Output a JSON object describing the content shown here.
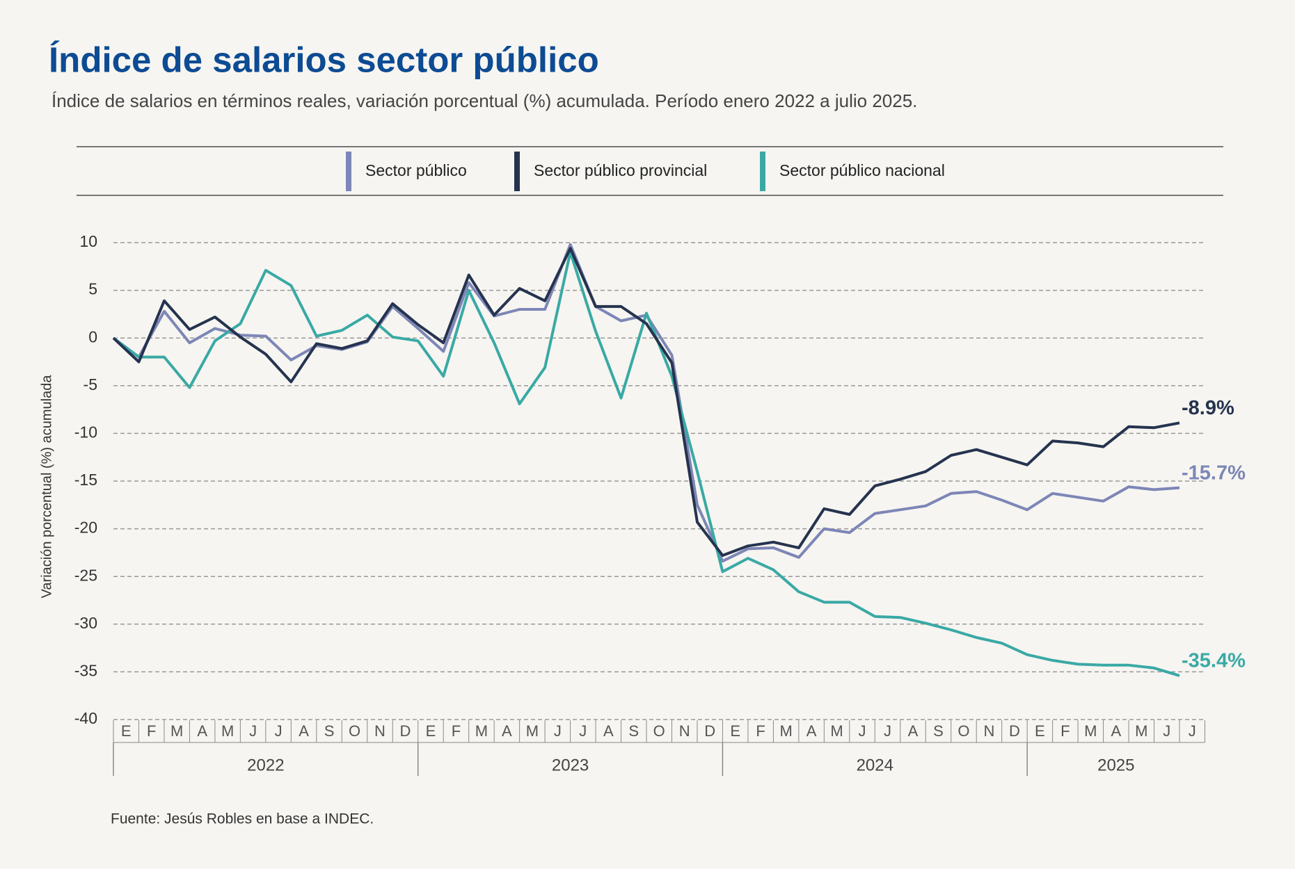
{
  "chart_data": {
    "type": "line",
    "title": "Índice de salarios sector público",
    "subtitle": "Índice de salarios en términos reales, variación porcentual (%) acumulada. Período enero 2022 a julio 2025.",
    "y_label": "Variación porcentual (%) acumulada",
    "source": "Fuente: Jesús Robles en base a INDEC.",
    "legend": "top",
    "grid": true,
    "categories": [
      "E",
      "F",
      "M",
      "A",
      "M",
      "J",
      "J",
      "A",
      "S",
      "O",
      "N",
      "D",
      "E",
      "F",
      "M",
      "A",
      "M",
      "J",
      "J",
      "A",
      "S",
      "O",
      "N",
      "D",
      "E",
      "F",
      "M",
      "A",
      "M",
      "J",
      "J",
      "A",
      "S",
      "O",
      "N",
      "D",
      "E",
      "F",
      "M",
      "A",
      "M",
      "J",
      "J"
    ],
    "category_groups": [
      "2022",
      "2023",
      "2024",
      "2025"
    ],
    "ylim": [
      -40,
      10
    ],
    "yticks": [
      10,
      5,
      0,
      -5,
      -10,
      -15,
      -20,
      -25,
      -30,
      -35,
      -40
    ],
    "series": [
      {
        "name": "Sector público",
        "color": "#7d86b6",
        "values": [
          0,
          -2,
          2.8,
          -0.5,
          1,
          0.3,
          0.2,
          -2.3,
          -0.8,
          -1.2,
          -0.4,
          3.3,
          1,
          -1.4,
          5.8,
          2.3,
          3,
          3,
          9.8,
          3.3,
          1.8,
          2.4,
          -1.8,
          -17.5,
          -23.4,
          -22.1,
          -22,
          -23,
          -20,
          -20.4,
          -18.4,
          -18,
          -17.6,
          -16.3,
          -16.1,
          -17,
          -18,
          -16.3,
          -16.7,
          -17.1,
          -15.6,
          -15.9,
          -15.7
        ],
        "value_labels": [
          null,
          null,
          null,
          null,
          null,
          null,
          null,
          null,
          null,
          null,
          null,
          null,
          null,
          null,
          null,
          null,
          null,
          null,
          null,
          null,
          null,
          null,
          null,
          null,
          null,
          null,
          null,
          null,
          null,
          null,
          null,
          null,
          null,
          null,
          null,
          null,
          null,
          null,
          null,
          null,
          null,
          null,
          "-15.7%"
        ]
      },
      {
        "name": "Sector público provincial",
        "color": "#25334f",
        "values": [
          0,
          -2.5,
          3.9,
          0.9,
          2.2,
          0.1,
          -1.7,
          -4.6,
          -0.6,
          -1.1,
          -0.3,
          3.6,
          1.4,
          -0.5,
          6.6,
          2.4,
          5.2,
          3.9,
          9.4,
          3.3,
          3.3,
          1.5,
          -2.6,
          -19.3,
          -22.8,
          -21.8,
          -21.4,
          -22,
          -17.9,
          -18.5,
          -15.5,
          -14.8,
          -14,
          -12.3,
          -11.7,
          -12.5,
          -13.3,
          -10.8,
          -11,
          -11.4,
          -9.3,
          -9.4,
          -8.9
        ],
        "value_labels": [
          null,
          null,
          null,
          null,
          null,
          null,
          null,
          null,
          null,
          null,
          null,
          null,
          null,
          null,
          null,
          null,
          null,
          null,
          null,
          null,
          null,
          null,
          null,
          null,
          null,
          null,
          null,
          null,
          null,
          null,
          null,
          null,
          null,
          null,
          null,
          null,
          null,
          null,
          null,
          null,
          null,
          null,
          "-8.9%"
        ]
      },
      {
        "name": "Sector público nacional",
        "color": "#3aa9a5",
        "values": [
          0,
          -2,
          -2,
          -5.2,
          -0.3,
          1.5,
          7.1,
          5.5,
          0.2,
          0.8,
          2.4,
          0.1,
          -0.3,
          -4,
          5,
          -0.5,
          -6.9,
          -3.1,
          9,
          0.7,
          -6.3,
          2.6,
          -4,
          -14,
          -24.5,
          -23.1,
          -24.3,
          -26.6,
          -27.7,
          -27.7,
          -29.2,
          -29.3,
          -29.9,
          -30.6,
          -31.4,
          -32,
          -33.2,
          -33.8,
          -34.2,
          -34.3,
          -34.3,
          -34.6,
          -35.4
        ],
        "value_labels": [
          null,
          null,
          null,
          null,
          null,
          null,
          null,
          null,
          null,
          null,
          null,
          null,
          null,
          null,
          null,
          null,
          null,
          null,
          null,
          null,
          null,
          null,
          null,
          null,
          null,
          null,
          null,
          null,
          null,
          null,
          null,
          null,
          null,
          null,
          null,
          null,
          null,
          null,
          null,
          null,
          null,
          null,
          "-35.4%"
        ]
      }
    ]
  }
}
